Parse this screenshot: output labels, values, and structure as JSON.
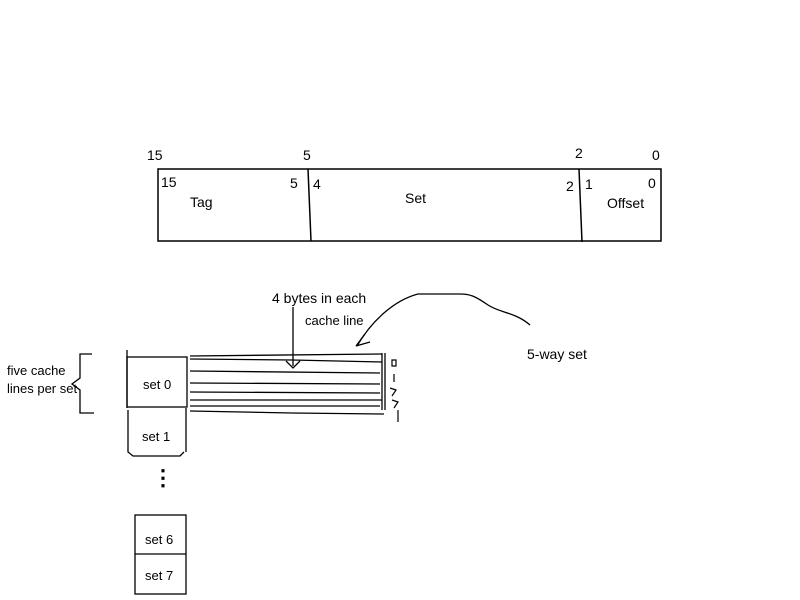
{
  "address": {
    "outer_bits": {
      "b15": "15",
      "b5": "5",
      "b2": "2",
      "b0": "0"
    },
    "fields": {
      "tag": {
        "label": "Tag",
        "hi": "15",
        "lo": "5"
      },
      "set": {
        "label": "Set",
        "hi": "4",
        "lo": "2"
      },
      "offset": {
        "label": "Offset",
        "hi": "1",
        "lo": "0"
      }
    }
  },
  "annotations": {
    "bytes_per_line_a": "4 bytes in each",
    "bytes_per_line_b": "cache line",
    "ways": "5-way set",
    "lines_per_set": "five cache lines per set",
    "ellipsis": "⋮"
  },
  "sets": {
    "s0": "set 0",
    "s1": "set 1",
    "s6": "set 6",
    "s7": "set 7"
  }
}
